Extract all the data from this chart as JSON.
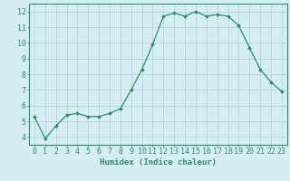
{
  "x": [
    0,
    1,
    2,
    3,
    4,
    5,
    6,
    7,
    8,
    9,
    10,
    11,
    12,
    13,
    14,
    15,
    16,
    17,
    18,
    19,
    20,
    21,
    22,
    23
  ],
  "y": [
    5.3,
    3.9,
    4.7,
    5.4,
    5.5,
    5.3,
    5.3,
    5.5,
    5.8,
    7.0,
    8.3,
    9.9,
    11.7,
    11.9,
    11.7,
    12.0,
    11.7,
    11.8,
    11.7,
    11.1,
    9.7,
    8.3,
    7.5,
    6.9
  ],
  "line_color": "#2e8b6e",
  "marker": "D",
  "marker_size": 2.0,
  "bg_color": "#d4eef4",
  "grid_color": "#b8d4dc",
  "xlabel": "Humidex (Indice chaleur)",
  "xlim": [
    -0.5,
    23.5
  ],
  "ylim": [
    3.5,
    12.5
  ],
  "yticks": [
    4,
    5,
    6,
    7,
    8,
    9,
    10,
    11,
    12
  ],
  "xticks": [
    0,
    1,
    2,
    3,
    4,
    5,
    6,
    7,
    8,
    9,
    10,
    11,
    12,
    13,
    14,
    15,
    16,
    17,
    18,
    19,
    20,
    21,
    22,
    23
  ],
  "tick_color": "#2e8b6e",
  "label_fontsize": 6.0,
  "axis_label_fontsize": 6.5
}
